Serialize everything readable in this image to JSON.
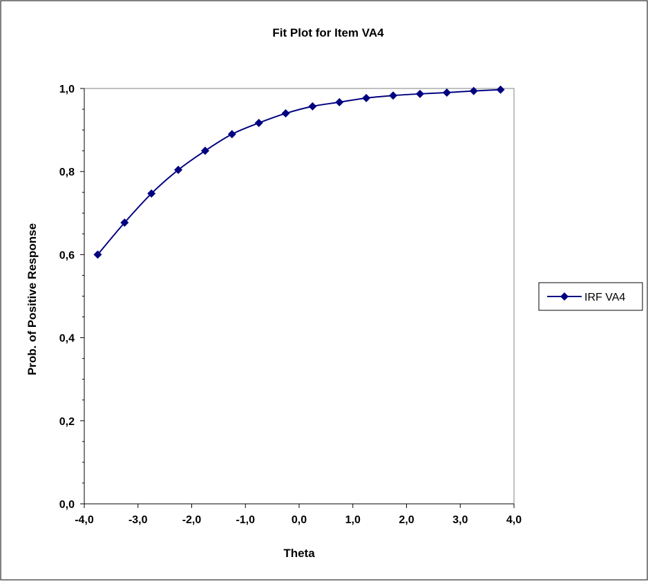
{
  "chart_data": {
    "type": "line",
    "title": "Fit Plot for Item VA4",
    "xlabel": "Theta",
    "ylabel": "Prob. of Positive Response",
    "xlim": [
      -4.0,
      4.0
    ],
    "ylim": [
      0.0,
      1.0
    ],
    "x_ticks": [
      "-4,0",
      "-3,0",
      "-2,0",
      "-1,0",
      "0,0",
      "1,0",
      "2,0",
      "3,0",
      "4,0"
    ],
    "y_ticks": [
      "0,0",
      "0,2",
      "0,4",
      "0,6",
      "0,8",
      "1,0"
    ],
    "grid": false,
    "legend_position": "right",
    "series": [
      {
        "name": "IRF VA4",
        "color": "#000080",
        "marker": "diamond",
        "x": [
          -3.75,
          -3.25,
          -2.75,
          -2.25,
          -1.75,
          -1.25,
          -0.75,
          -0.25,
          0.25,
          0.75,
          1.25,
          1.75,
          2.25,
          2.75,
          3.25,
          3.75
        ],
        "y": [
          0.6,
          0.677,
          0.747,
          0.804,
          0.85,
          0.89,
          0.917,
          0.94,
          0.957,
          0.967,
          0.977,
          0.983,
          0.987,
          0.99,
          0.994,
          0.997
        ]
      }
    ]
  }
}
